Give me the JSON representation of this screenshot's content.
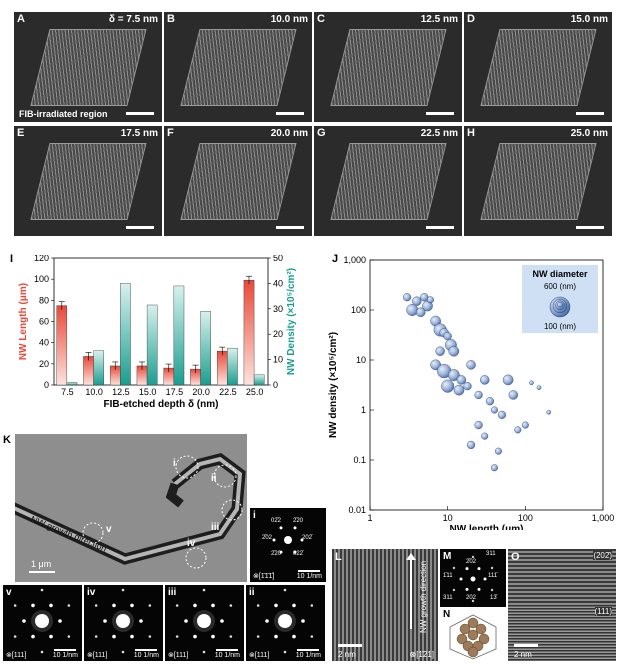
{
  "sem_panels": [
    {
      "letter": "A",
      "depth": "δ = 7.5 nm",
      "annotation": "FIB-irradiated region"
    },
    {
      "letter": "B",
      "depth": "10.0 nm"
    },
    {
      "letter": "C",
      "depth": "12.5 nm"
    },
    {
      "letter": "D",
      "depth": "15.0 nm"
    },
    {
      "letter": "E",
      "depth": "17.5 nm"
    },
    {
      "letter": "F",
      "depth": "20.0 nm"
    },
    {
      "letter": "G",
      "depth": "22.5 nm"
    },
    {
      "letter": "H",
      "depth": "25.0 nm"
    }
  ],
  "panel_I": {
    "letter": "I",
    "chart_data": {
      "type": "bar",
      "categories": [
        "7.5",
        "10.0",
        "12.5",
        "15.0",
        "17.5",
        "20.0",
        "22.5",
        "25.0"
      ],
      "series": [
        {
          "name": "NW Length (μm)",
          "axis": "left",
          "values": [
            75,
            27,
            18,
            18,
            16,
            15,
            32,
            99
          ],
          "color": "#e8493a"
        },
        {
          "name": "NW Density (×10⁵/cm²)",
          "axis": "right",
          "values": [
            1,
            13.5,
            40,
            31.5,
            39,
            29,
            14.5,
            4
          ],
          "color": "#1a9e8f"
        }
      ],
      "xlabel": "FIB-etched depth δ (nm)",
      "ylabel_left": "NW Length (μm)",
      "ylabel_right": "NW Density (×10⁵/cm²)",
      "ylim_left": [
        0,
        120
      ],
      "ylim_right": [
        0,
        50
      ],
      "yticks_left": [
        "0",
        "20",
        "40",
        "60",
        "80",
        "100",
        "120"
      ],
      "yticks_right": [
        "0",
        "10",
        "20",
        "30",
        "40",
        "50"
      ]
    }
  },
  "panel_J": {
    "letter": "J",
    "chart_data": {
      "type": "scatter",
      "xscale": "log",
      "yscale": "log",
      "xlim": [
        1,
        1000
      ],
      "ylim": [
        0.01,
        1000
      ],
      "xlabel": "NW length (μm)",
      "ylabel": "NW density (×10⁵/cm²)",
      "xticks": [
        "1",
        "10",
        "100",
        "1,000"
      ],
      "yticks": [
        "0.01",
        "0.1",
        "1",
        "10",
        "100",
        "1,000"
      ],
      "legend_title": "NW diameter",
      "legend_labels": [
        "600 (nm)",
        "100 (nm)"
      ],
      "points": [
        {
          "x": 3,
          "y": 180,
          "s": 0.4
        },
        {
          "x": 3.5,
          "y": 100,
          "s": 0.7
        },
        {
          "x": 4,
          "y": 150,
          "s": 0.5
        },
        {
          "x": 5,
          "y": 180,
          "s": 0.4
        },
        {
          "x": 5.5,
          "y": 120,
          "s": 0.6
        },
        {
          "x": 6,
          "y": 160,
          "s": 0.3
        },
        {
          "x": 4.5,
          "y": 90,
          "s": 0.5
        },
        {
          "x": 7,
          "y": 60,
          "s": 0.6
        },
        {
          "x": 8,
          "y": 40,
          "s": 0.8
        },
        {
          "x": 9,
          "y": 35,
          "s": 0.5
        },
        {
          "x": 10,
          "y": 30,
          "s": 0.4
        },
        {
          "x": 11,
          "y": 20,
          "s": 0.7
        },
        {
          "x": 12,
          "y": 15,
          "s": 0.6
        },
        {
          "x": 8,
          "y": 15,
          "s": 0.5
        },
        {
          "x": 7,
          "y": 8,
          "s": 0.6
        },
        {
          "x": 9,
          "y": 6,
          "s": 0.9
        },
        {
          "x": 12,
          "y": 5,
          "s": 0.7
        },
        {
          "x": 15,
          "y": 4,
          "s": 0.5
        },
        {
          "x": 10,
          "y": 3,
          "s": 0.8
        },
        {
          "x": 14,
          "y": 2.5,
          "s": 0.6
        },
        {
          "x": 18,
          "y": 3,
          "s": 0.4
        },
        {
          "x": 20,
          "y": 8,
          "s": 0.5
        },
        {
          "x": 25,
          "y": 2,
          "s": 0.4
        },
        {
          "x": 30,
          "y": 4,
          "s": 0.5
        },
        {
          "x": 35,
          "y": 1.5,
          "s": 0.4
        },
        {
          "x": 40,
          "y": 1,
          "s": 0.3
        },
        {
          "x": 50,
          "y": 0.8,
          "s": 0.4
        },
        {
          "x": 60,
          "y": 4,
          "s": 0.6
        },
        {
          "x": 70,
          "y": 2,
          "s": 0.5
        },
        {
          "x": 25,
          "y": 0.5,
          "s": 0.4
        },
        {
          "x": 30,
          "y": 0.3,
          "s": 0.3
        },
        {
          "x": 20,
          "y": 0.2,
          "s": 0.4
        },
        {
          "x": 45,
          "y": 0.15,
          "s": 0.3
        },
        {
          "x": 40,
          "y": 0.07,
          "s": 0.3
        },
        {
          "x": 80,
          "y": 0.4,
          "s": 0.3
        },
        {
          "x": 100,
          "y": 0.5,
          "s": 0.3
        },
        {
          "x": 120,
          "y": 3.5,
          "s": 0.1
        },
        {
          "x": 150,
          "y": 2.8,
          "s": 0.1
        },
        {
          "x": 200,
          "y": 0.9,
          "s": 0.1
        }
      ]
    }
  },
  "panel_K": {
    "letter": "K",
    "direction_label": "NW growth direction",
    "scale": "1 μm",
    "regions": [
      "i",
      "ii",
      "iii",
      "iv",
      "v"
    ]
  },
  "saed_main": {
    "letter": "i",
    "zone": "⊗[1̄1̄1̄]",
    "scale": "10 1/nm",
    "spots": [
      "02̄2",
      "2̄20",
      "2̄02",
      "202̄",
      "2̄20",
      "022̄"
    ]
  },
  "saed_row": [
    {
      "letter": "v",
      "zone": "⊗[111]",
      "scale": "10 1/nm"
    },
    {
      "letter": "iv",
      "zone": "⊗[111]",
      "scale": "10 1/nm"
    },
    {
      "letter": "iii",
      "zone": "⊗[111]",
      "scale": "10 1/nm"
    },
    {
      "letter": "ii",
      "zone": "⊗[111]",
      "scale": "10 1/nm"
    }
  ],
  "panel_L": {
    "letter": "L",
    "scale": "2 nm",
    "zone": "⊗[1̄21]",
    "direction": "NW growth direction"
  },
  "panel_M": {
    "letter": "M",
    "spots": [
      "311",
      "2̄02",
      "1̄11",
      "111̄",
      "311",
      "202",
      "13̄"
    ]
  },
  "panel_N": {
    "letter": "N"
  },
  "panel_O": {
    "letter": "O",
    "scale": "2 nm",
    "top": "(202̄)",
    "bottom": "(111)"
  }
}
